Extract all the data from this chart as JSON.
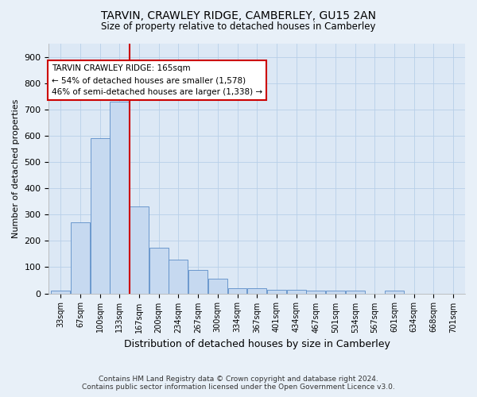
{
  "title": "TARVIN, CRAWLEY RIDGE, CAMBERLEY, GU15 2AN",
  "subtitle": "Size of property relative to detached houses in Camberley",
  "xlabel": "Distribution of detached houses by size in Camberley",
  "ylabel": "Number of detached properties",
  "footer_line1": "Contains HM Land Registry data © Crown copyright and database right 2024.",
  "footer_line2": "Contains public sector information licensed under the Open Government Licence v3.0.",
  "bar_labels": [
    "33sqm",
    "67sqm",
    "100sqm",
    "133sqm",
    "167sqm",
    "200sqm",
    "234sqm",
    "267sqm",
    "300sqm",
    "334sqm",
    "367sqm",
    "401sqm",
    "434sqm",
    "467sqm",
    "501sqm",
    "534sqm",
    "567sqm",
    "601sqm",
    "634sqm",
    "668sqm",
    "701sqm"
  ],
  "bar_values": [
    10,
    270,
    590,
    730,
    330,
    175,
    130,
    90,
    55,
    20,
    20,
    15,
    15,
    10,
    10,
    10,
    0,
    10,
    0,
    0,
    0
  ],
  "bar_color": "#c6d9f0",
  "bar_edge_color": "#5b8dc8",
  "property_line_x": 3.5,
  "annotation_text_line1": "TARVIN CRAWLEY RIDGE: 165sqm",
  "annotation_text_line2": "← 54% of detached houses are smaller (1,578)",
  "annotation_text_line3": "46% of semi-detached houses are larger (1,338) →",
  "annotation_box_color": "#cc0000",
  "ylim": [
    0,
    950
  ],
  "yticks": [
    0,
    100,
    200,
    300,
    400,
    500,
    600,
    700,
    800,
    900
  ],
  "grid_color": "#b8cfe8",
  "background_color": "#e8f0f8",
  "plot_bg_color": "#dce8f5"
}
